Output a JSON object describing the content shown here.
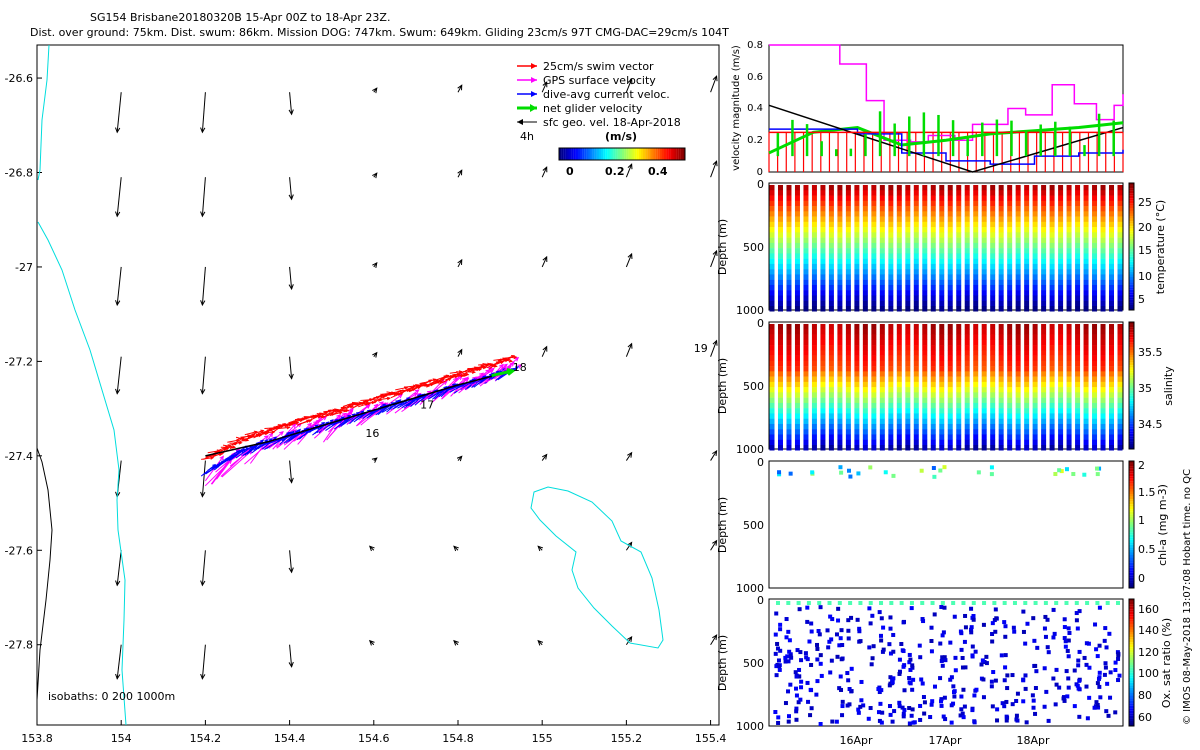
{
  "title": {
    "line1": "SG154 Brisbane20180320B 15-Apr 00Z to 18-Apr 23Z.",
    "line2": "Dist. over ground: 75km. Dist. swum: 86km. Mission DOG: 747km. Swum: 649km. Gliding 23cm/s 97T CMG-DAC=29cm/s 104T"
  },
  "colors": {
    "swim": "#ff0000",
    "gps": "#ff00ff",
    "dac": "#0000ff",
    "net": "#00dd00",
    "sfc": "#000000",
    "coast": "#00dddd",
    "isobath": "#000000"
  },
  "chart_data": [
    {
      "type": "scatter",
      "name": "track-map",
      "xlim": [
        153.8,
        155.42
      ],
      "ylim": [
        -27.97,
        -26.53
      ],
      "xticks": [
        "153.8",
        "154",
        "154.2",
        "154.4",
        "154.6",
        "154.8",
        "155",
        "155.2",
        "155.4"
      ],
      "yticks": [
        "-26.6",
        "-26.8",
        "-27",
        "-27.2",
        "-27.4",
        "-27.6",
        "-27.8"
      ],
      "legend": [
        "25cm/s swim vector",
        "GPS surface velocity",
        "dive-avg current veloc.",
        "net glider velocity",
        "sfc geo. vel. 18-Apr-2018"
      ],
      "legend_scale_label": "4h",
      "colorbar": {
        "label": "(m/s)",
        "ticks": [
          "0",
          "0.2",
          "0.4"
        ],
        "range": [
          0,
          0.5
        ]
      },
      "isobaths_label": "isobaths: 0   200   1000m",
      "track_day_labels": [
        {
          "text": "16",
          "lon": 154.58,
          "lat": -27.36
        },
        {
          "text": "17",
          "lon": 154.71,
          "lat": -27.3
        },
        {
          "text": "18",
          "lon": 154.93,
          "lat": -27.22
        },
        {
          "text": "19",
          "lon": 155.36,
          "lat": -27.18
        }
      ],
      "track": [
        [
          154.2,
          -27.4
        ],
        [
          154.35,
          -27.37
        ],
        [
          154.5,
          -27.33
        ],
        [
          154.65,
          -27.29
        ],
        [
          154.8,
          -27.25
        ],
        [
          154.93,
          -27.22
        ]
      ]
    },
    {
      "type": "line",
      "name": "velocity-magnitude",
      "ylabel": "velocity magnitude (m/s)",
      "xlim": [
        0,
        4
      ],
      "ylim": [
        0,
        0.8
      ],
      "yticks": [
        "0",
        "0.2",
        "0.4",
        "0.6",
        "0.8"
      ],
      "series": [
        {
          "name": "GPS surface velocity",
          "x": [
            0,
            0.3,
            0.8,
            1.1,
            1.3,
            1.6,
            1.8,
            2.1,
            2.3,
            2.7,
            2.9,
            3.2,
            3.45,
            3.7,
            3.9,
            4.0
          ],
          "values": [
            0.8,
            0.8,
            0.68,
            0.45,
            0.2,
            0.19,
            0.23,
            0.2,
            0.3,
            0.4,
            0.36,
            0.55,
            0.43,
            0.33,
            0.42,
            0.49
          ]
        },
        {
          "name": "net glider velocity",
          "x": [
            0,
            0.5,
            1.0,
            1.5,
            2.0,
            2.5,
            3.0,
            3.5,
            4.0
          ],
          "values": [
            0.12,
            0.25,
            0.28,
            0.17,
            0.2,
            0.24,
            0.26,
            0.28,
            0.31
          ]
        },
        {
          "name": "dive-avg current veloc.",
          "x": [
            0,
            0.5,
            1.0,
            1.5,
            2.0,
            2.5,
            3.0,
            3.5,
            4.0
          ],
          "values": [
            0.27,
            0.27,
            0.24,
            0.12,
            0.07,
            0.05,
            0.1,
            0.12,
            0.14
          ]
        },
        {
          "name": "sfc geo. vel.",
          "x": [
            0,
            2.3,
            4.0
          ],
          "values": [
            0.42,
            0.0,
            0.28
          ]
        },
        {
          "name": "25cm/s swim vector",
          "x": [
            0,
            4.0
          ],
          "values": [
            0.25,
            0.25
          ]
        }
      ]
    },
    {
      "type": "scatter",
      "name": "temperature-section",
      "ylabel": "Depth (m)",
      "ylim": [
        0,
        1000
      ],
      "yticks": [
        "0",
        "500",
        "1000"
      ],
      "colorbar": {
        "label": "temperature (°C)",
        "ticks": [
          "5",
          "10",
          "15",
          "20",
          "25"
        ],
        "range": [
          4,
          28
        ]
      },
      "profile_pairs": 21,
      "surface_value": 27,
      "deep_value": 4
    },
    {
      "type": "scatter",
      "name": "salinity-section",
      "ylabel": "Depth (m)",
      "ylim": [
        0,
        1000
      ],
      "yticks": [
        "0",
        "500",
        "1000"
      ],
      "colorbar": {
        "label": "salinity",
        "ticks": [
          "34.5",
          "35",
          "35.5"
        ],
        "range": [
          34.3,
          35.9
        ]
      },
      "profile_pairs": 21,
      "surface_value": 35.6,
      "deep_value": 34.4
    },
    {
      "type": "scatter",
      "name": "chla-section",
      "ylabel": "Depth (m)",
      "ylim": [
        0,
        1000
      ],
      "yticks": [
        "0",
        "500",
        "1000"
      ],
      "colorbar": {
        "label": "chl-a (mg m-3)",
        "ticks": [
          "0",
          "0.5",
          "1",
          "1.5",
          "2"
        ],
        "range": [
          0,
          2
        ]
      }
    },
    {
      "type": "scatter",
      "name": "oxygen-section",
      "ylabel": "Depth (m)",
      "ylim": [
        0,
        1000
      ],
      "yticks": [
        "0",
        "500",
        "1000"
      ],
      "xticks": [
        "16Apr",
        "17Apr",
        "18Apr"
      ],
      "colorbar": {
        "label": "Ox. sat ratio (%)",
        "ticks": [
          "60",
          "80",
          "100",
          "120",
          "140",
          "160"
        ],
        "range": [
          55,
          168
        ]
      }
    }
  ],
  "footer": {
    "stamp": "© IMOS 08-May-2018 13:07:08 Hobart time. no QC"
  }
}
